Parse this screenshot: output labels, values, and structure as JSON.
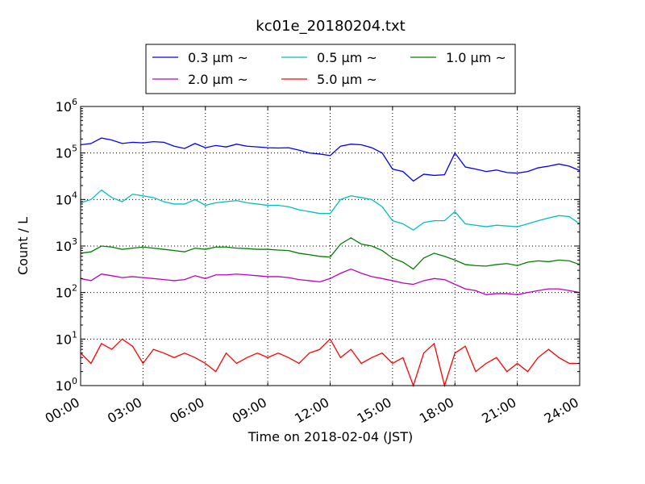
{
  "chart_data": {
    "type": "line",
    "title": "kc01e_20180204.txt",
    "xlabel": "Time on 2018-02-04 (JST)",
    "ylabel": "Count / L",
    "yscale": "log",
    "ylim": [
      1,
      1000000
    ],
    "xlim": [
      "2018-02-04 00:00",
      "2018-02-05 00:00"
    ],
    "xticks": [
      "00:00",
      "03:00",
      "06:00",
      "09:00",
      "12:00",
      "15:00",
      "18:00",
      "21:00",
      "24:00"
    ],
    "yticks": [
      {
        "base": "10",
        "exp": "0"
      },
      {
        "base": "10",
        "exp": "1"
      },
      {
        "base": "10",
        "exp": "2"
      },
      {
        "base": "10",
        "exp": "3"
      },
      {
        "base": "10",
        "exp": "4"
      },
      {
        "base": "10",
        "exp": "5"
      },
      {
        "base": "10",
        "exp": "6"
      }
    ],
    "grid": true,
    "legend_position": "top-center",
    "x_hours": [
      0,
      0.5,
      1,
      1.5,
      2,
      2.5,
      3,
      3.5,
      4,
      4.5,
      5,
      5.5,
      6,
      6.5,
      7,
      7.5,
      8,
      8.5,
      9,
      9.5,
      10,
      10.5,
      11,
      11.5,
      12,
      12.5,
      13,
      13.5,
      14,
      14.5,
      15,
      15.5,
      16,
      16.5,
      17,
      17.5,
      18,
      18.5,
      19,
      19.5,
      20,
      20.5,
      21,
      21.5,
      22,
      22.5,
      23,
      23.5,
      24
    ],
    "series": [
      {
        "name": "0.3 μm ~",
        "color": "#0000ff",
        "values": [
          150000,
          160000,
          210000,
          190000,
          160000,
          170000,
          165000,
          175000,
          170000,
          140000,
          125000,
          160000,
          130000,
          145000,
          135000,
          155000,
          140000,
          135000,
          130000,
          128000,
          130000,
          115000,
          100000,
          95000,
          88000,
          140000,
          155000,
          150000,
          130000,
          100000,
          45000,
          40000,
          25000,
          35000,
          33000,
          34000,
          100000,
          50000,
          45000,
          40000,
          43000,
          38000,
          37000,
          40000,
          48000,
          52000,
          58000,
          52000,
          42000
        ]
      },
      {
        "name": "0.5 μm ~",
        "color": "#00bfbf",
        "values": [
          8500,
          10000,
          16000,
          11000,
          9000,
          13000,
          12000,
          11000,
          9000,
          8000,
          8000,
          10000,
          7500,
          8500,
          9000,
          9500,
          8500,
          8000,
          7500,
          7500,
          7000,
          6000,
          5500,
          5000,
          5000,
          10000,
          12000,
          11000,
          10000,
          7000,
          3500,
          3000,
          2200,
          3200,
          3500,
          3500,
          5500,
          3000,
          2800,
          2600,
          2800,
          2700,
          2600,
          3000,
          3500,
          4000,
          4500,
          4300,
          3000
        ]
      },
      {
        "name": "1.0 μm ~",
        "color": "#008000",
        "values": [
          700,
          750,
          1000,
          950,
          850,
          900,
          950,
          900,
          850,
          800,
          750,
          900,
          850,
          950,
          950,
          900,
          880,
          850,
          850,
          820,
          800,
          700,
          650,
          600,
          580,
          1100,
          1500,
          1100,
          1000,
          800,
          550,
          450,
          320,
          550,
          700,
          600,
          500,
          400,
          380,
          370,
          400,
          420,
          380,
          450,
          480,
          460,
          500,
          480,
          400
        ]
      },
      {
        "name": "2.0 μm ~",
        "color": "#bf00bf",
        "values": [
          200,
          180,
          250,
          230,
          210,
          220,
          210,
          200,
          190,
          180,
          190,
          230,
          200,
          240,
          240,
          250,
          240,
          230,
          220,
          220,
          210,
          190,
          180,
          170,
          200,
          260,
          320,
          260,
          220,
          200,
          180,
          160,
          150,
          180,
          200,
          190,
          150,
          120,
          110,
          90,
          95,
          95,
          90,
          100,
          110,
          120,
          120,
          110,
          100
        ]
      },
      {
        "name": "5.0 μm ~",
        "color": "#ff0000",
        "values": [
          5,
          3,
          8,
          6,
          10,
          7,
          3,
          6,
          5,
          4,
          5,
          4,
          3,
          2,
          5,
          3,
          4,
          5,
          4,
          5,
          4,
          3,
          5,
          6,
          10,
          4,
          6,
          3,
          4,
          5,
          3,
          4,
          1,
          5,
          8,
          1,
          5,
          7,
          2,
          3,
          4,
          2,
          3,
          2,
          4,
          6,
          4,
          3,
          3
        ]
      }
    ]
  }
}
